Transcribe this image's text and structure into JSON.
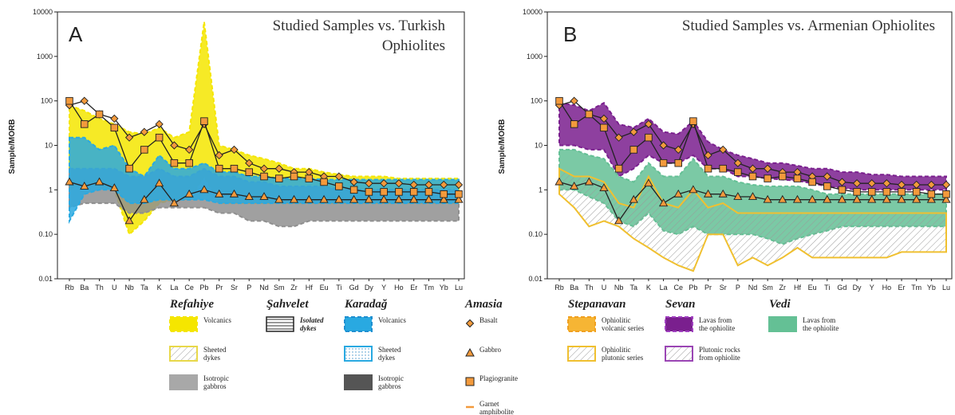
{
  "chart_data": [
    {
      "type": "line",
      "panel_letter": "A",
      "title_lines": [
        "Studied Samples vs. Turkish",
        "Ophiolites"
      ],
      "ylabel": "Sample/MORB",
      "xlabel": "",
      "yscale": "log",
      "ylim": [
        0.01,
        10000
      ],
      "yticks": [
        "0.01",
        "0.10",
        "1",
        "10",
        "100",
        "1000",
        "10000"
      ],
      "categories": [
        "Rb",
        "Ba",
        "Th",
        "U",
        "Nb",
        "Ta",
        "K",
        "La",
        "Ce",
        "Pb",
        "Pr",
        "Sr",
        "P",
        "Nd",
        "Sm",
        "Zr",
        "Hf",
        "Eu",
        "Ti",
        "Gd",
        "Dy",
        "Y",
        "Ho",
        "Er",
        "Tm",
        "Yb",
        "Lu"
      ],
      "fields": [
        {
          "name": "Refahiye Volcanics",
          "color": "#f5e600",
          "upper": [
            80,
            60,
            40,
            30,
            20,
            18,
            25,
            15,
            20,
            6000,
            10,
            8,
            6,
            5,
            4,
            3,
            3,
            2.5,
            2.2,
            2,
            2,
            2,
            1.8,
            1.8,
            1.8,
            1.8,
            1.8
          ],
          "lower": [
            1,
            1.5,
            1.2,
            1,
            0.1,
            0.2,
            0.5,
            0.6,
            0.6,
            2,
            0.5,
            0.5,
            0.5,
            0.5,
            0.5,
            0.5,
            0.5,
            0.5,
            0.5,
            0.5,
            0.5,
            0.5,
            0.5,
            0.5,
            0.5,
            0.5,
            0.5
          ]
        },
        {
          "name": "Refahiye Isotropic gabbros",
          "color": "#8f8f8f",
          "upper": [
            3,
            3,
            3,
            3,
            2,
            2,
            3,
            2,
            2,
            3,
            2,
            2,
            1.5,
            1.5,
            1.2,
            1.2,
            1.2,
            1.2,
            1,
            1,
            1,
            1,
            1,
            1,
            1,
            1,
            1
          ],
          "lower": [
            0.4,
            0.5,
            0.5,
            0.5,
            0.3,
            0.3,
            0.4,
            0.4,
            0.4,
            0.4,
            0.3,
            0.3,
            0.2,
            0.2,
            0.15,
            0.15,
            0.2,
            0.2,
            0.2,
            0.2,
            0.2,
            0.2,
            0.2,
            0.2,
            0.2,
            0.2,
            0.2
          ]
        },
        {
          "name": "Karadag Volcanics",
          "color": "#29a9e1",
          "upper": [
            15,
            15,
            8,
            10,
            3,
            2,
            6,
            3,
            3,
            4,
            2.5,
            2.5,
            2,
            2,
            1.8,
            1.8,
            1.8,
            1.7,
            1.7,
            1.7,
            1.7,
            1.7,
            1.7,
            1.7,
            1.7,
            1.7,
            1.7
          ],
          "lower": [
            0.2,
            0.8,
            1,
            1,
            0.5,
            0.5,
            0.6,
            0.6,
            0.6,
            0.6,
            0.5,
            0.5,
            0.5,
            0.5,
            0.5,
            0.5,
            0.5,
            0.5,
            0.5,
            0.5,
            0.5,
            0.5,
            0.5,
            0.5,
            0.5,
            0.5,
            0.5
          ]
        }
      ],
      "series": [
        {
          "name": "Basalt",
          "values": [
            80,
            100,
            50,
            40,
            15,
            20,
            30,
            10,
            8,
            30,
            6,
            8,
            4,
            3,
            3,
            2.5,
            2.5,
            2,
            2,
            1.5,
            1.4,
            1.4,
            1.4,
            1.3,
            1.3,
            1.3,
            1.3
          ]
        },
        {
          "name": "Gabbro",
          "values": [
            1.5,
            1.2,
            1.5,
            1.1,
            0.2,
            0.6,
            1.4,
            0.5,
            0.8,
            1,
            0.8,
            0.8,
            0.7,
            0.7,
            0.6,
            0.6,
            0.6,
            0.6,
            0.6,
            0.6,
            0.6,
            0.6,
            0.6,
            0.6,
            0.6,
            0.6,
            0.6
          ]
        },
        {
          "name": "Plagiogranite",
          "values": [
            100,
            30,
            50,
            25,
            3,
            8,
            15,
            4,
            4,
            35,
            3,
            3,
            2.5,
            2,
            1.8,
            2,
            1.8,
            1.5,
            1.2,
            1,
            0.9,
            0.9,
            0.9,
            0.9,
            0.9,
            0.8,
            0.8
          ]
        }
      ]
    },
    {
      "type": "line",
      "panel_letter": "B",
      "title_lines": [
        "Studied Samples vs. Armenian Ophiolites"
      ],
      "ylabel": "Sample/MORB",
      "xlabel": "",
      "yscale": "log",
      "ylim": [
        0.01,
        10000
      ],
      "yticks": [
        "0.01",
        "0.10",
        "1",
        "10",
        "100",
        "1000",
        "10000"
      ],
      "categories": [
        "Rb",
        "Ba",
        "Th",
        "U",
        "Nb",
        "Ta",
        "K",
        "La",
        "Ce",
        "Pb",
        "Pr",
        "Sr",
        "P",
        "Nd",
        "Sm",
        "Zr",
        "Hf",
        "Eu",
        "Ti",
        "Gd",
        "Dy",
        "Y",
        "Ho",
        "Er",
        "Tm",
        "Yb",
        "Lu"
      ],
      "fields": [
        {
          "name": "Sevan Lavas from the ophiolite",
          "color": "#7a1f8e",
          "upper": [
            90,
            80,
            60,
            90,
            30,
            25,
            40,
            20,
            18,
            35,
            12,
            8,
            6,
            5,
            4,
            4,
            3.5,
            3,
            3,
            2.5,
            2.5,
            2.2,
            2.2,
            2,
            2,
            2,
            2
          ],
          "lower": [
            10,
            10,
            8,
            8,
            2,
            3,
            6,
            4,
            4,
            6,
            3,
            3,
            2,
            2,
            1.8,
            1.7,
            1.6,
            1.4,
            1.2,
            1.1,
            1,
            1,
            1,
            1,
            1,
            1,
            1
          ]
        },
        {
          "name": "Vedi Lavas from the ophiolite",
          "color": "#64c095",
          "upper": [
            8,
            8,
            6,
            5,
            2,
            1.5,
            4,
            2,
            2,
            5,
            2,
            2,
            1.5,
            1.3,
            1.2,
            1.2,
            1.2,
            1,
            0.8,
            0.8,
            0.8,
            0.8,
            0.8,
            0.8,
            0.8,
            0.8,
            0.8
          ],
          "lower": [
            1,
            1,
            0.7,
            0.5,
            0.2,
            0.15,
            0.3,
            0.12,
            0.1,
            0.15,
            0.1,
            0.1,
            0.1,
            0.1,
            0.08,
            0.06,
            0.08,
            0.1,
            0.12,
            0.15,
            0.15,
            0.15,
            0.15,
            0.15,
            0.15,
            0.15,
            0.15
          ]
        },
        {
          "name": "Stepanavan Ophiolitic plutonic series",
          "color": "#f0c030",
          "upper": [
            3,
            2,
            2,
            1.5,
            0.5,
            0.4,
            2,
            0.5,
            0.4,
            1,
            0.4,
            0.5,
            0.3,
            0.3,
            0.3,
            0.3,
            0.3,
            0.3,
            0.3,
            0.3,
            0.3,
            0.3,
            0.3,
            0.3,
            0.3,
            0.3,
            0.3
          ],
          "lower": [
            0.8,
            0.4,
            0.15,
            0.2,
            0.15,
            0.08,
            0.05,
            0.03,
            0.02,
            0.015,
            0.1,
            0.1,
            0.02,
            0.03,
            0.02,
            0.03,
            0.05,
            0.03,
            0.03,
            0.03,
            0.03,
            0.03,
            0.03,
            0.04,
            0.04,
            0.04,
            0.04
          ]
        }
      ],
      "series": [
        {
          "name": "Basalt",
          "values": [
            80,
            100,
            50,
            40,
            15,
            20,
            30,
            10,
            8,
            30,
            6,
            8,
            4,
            3,
            3,
            2.5,
            2.5,
            2,
            2,
            1.5,
            1.4,
            1.4,
            1.4,
            1.3,
            1.3,
            1.3,
            1.3
          ]
        },
        {
          "name": "Gabbro",
          "values": [
            1.5,
            1.2,
            1.5,
            1.1,
            0.2,
            0.6,
            1.4,
            0.5,
            0.8,
            1,
            0.8,
            0.8,
            0.7,
            0.7,
            0.6,
            0.6,
            0.6,
            0.6,
            0.6,
            0.6,
            0.6,
            0.6,
            0.6,
            0.6,
            0.6,
            0.6,
            0.6
          ]
        },
        {
          "name": "Plagiogranite",
          "values": [
            100,
            30,
            50,
            25,
            3,
            8,
            15,
            4,
            4,
            35,
            3,
            3,
            2.5,
            2,
            1.8,
            2,
            1.8,
            1.5,
            1.2,
            1,
            0.9,
            0.9,
            0.9,
            0.9,
            0.9,
            0.8,
            0.8
          ]
        }
      ]
    }
  ],
  "legend": {
    "groups": [
      {
        "title": "Refahiye",
        "items": [
          {
            "label": "Volcanics",
            "swatch": "fill-dash",
            "fill": "#f5e600",
            "stroke": "#f5e600"
          },
          {
            "label": "Sheeted dykes",
            "swatch": "hatch-outline",
            "fill": "none",
            "stroke": "#e8d84a"
          },
          {
            "label": "Isotropic gabbros",
            "swatch": "fill",
            "fill": "#a8a8a8",
            "stroke": "#a8a8a8"
          }
        ]
      },
      {
        "title": "Şahvelet",
        "items": [
          {
            "label": "Isolated dykes",
            "swatch": "hlines",
            "fill": "none",
            "stroke": "#222222"
          }
        ]
      },
      {
        "title": "Karadağ",
        "items": [
          {
            "label": "Volcanics",
            "swatch": "fill-dash",
            "fill": "#29a9e1",
            "stroke": "#1f8fd0"
          },
          {
            "label": "Sheeted dykes",
            "swatch": "dots-outline",
            "fill": "none",
            "stroke": "#29a9e1"
          },
          {
            "label": "Isotropic gabbros",
            "swatch": "fill",
            "fill": "#555555",
            "stroke": "#555555"
          }
        ]
      },
      {
        "title": "Amasia",
        "items": [
          {
            "label": "Basalt",
            "swatch": "diamond",
            "fill": "#f39a3c",
            "stroke": "#222222"
          },
          {
            "label": "Gabbro",
            "swatch": "triangle",
            "fill": "#f39a3c",
            "stroke": "#222222"
          },
          {
            "label": "Plagiogranite",
            "swatch": "square",
            "fill": "#f39a3c",
            "stroke": "#222222"
          },
          {
            "label": "Garnet amphibolite",
            "swatch": "dash",
            "fill": "#f39a3c",
            "stroke": "#f39a3c"
          }
        ]
      },
      {
        "title": "Stepanavan",
        "items": [
          {
            "label": "Ophiolitic volcanic series",
            "swatch": "fill-dash",
            "fill": "#f6b534",
            "stroke": "#f0a020"
          },
          {
            "label": "Ophiolitic plutonic series",
            "swatch": "hatch-outline",
            "fill": "none",
            "stroke": "#f0c030"
          }
        ]
      },
      {
        "title": "Sevan",
        "items": [
          {
            "label": "Lavas from the ophiolite",
            "swatch": "fill-dash",
            "fill": "#7a1f8e",
            "stroke": "#a040c0"
          },
          {
            "label": "Plutonic rocks from ophiolite",
            "swatch": "hatch-outline",
            "fill": "none",
            "stroke": "#9a45b4"
          }
        ]
      },
      {
        "title": "Vedi",
        "items": [
          {
            "label": "Lavas from the ophiolite",
            "swatch": "fill",
            "fill": "#64c095",
            "stroke": "#64c095"
          }
        ]
      }
    ]
  }
}
